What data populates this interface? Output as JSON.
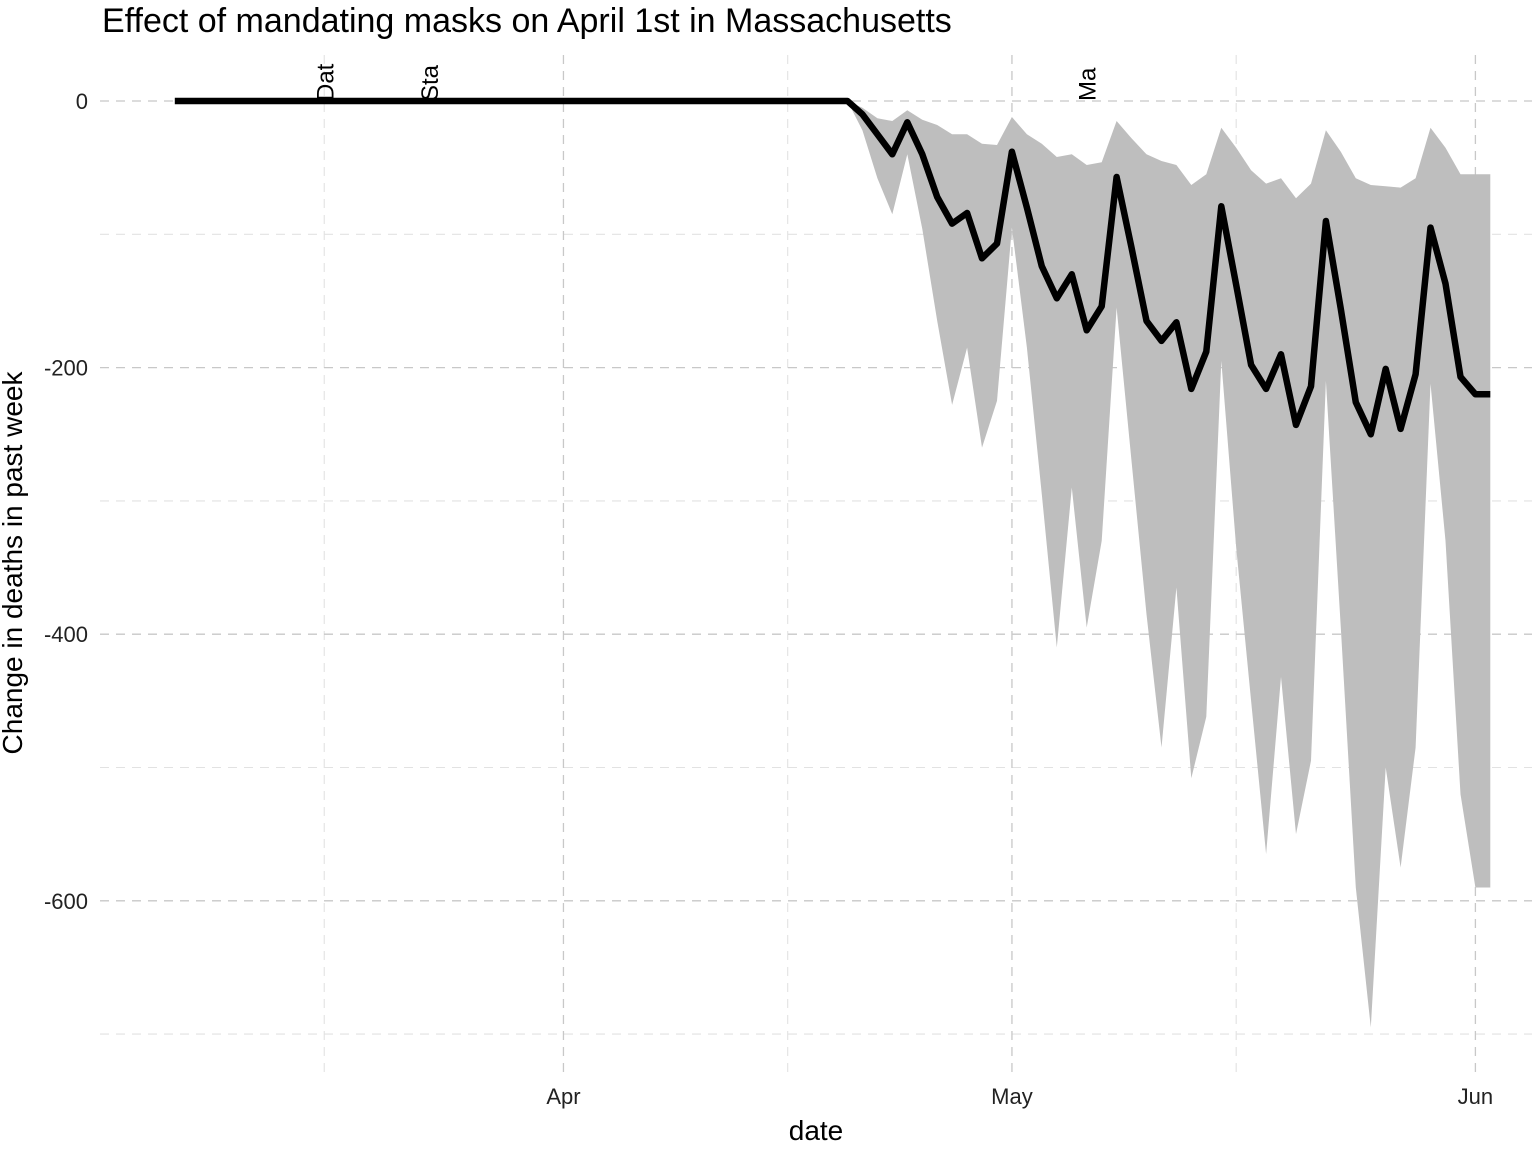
{
  "chart_data": {
    "type": "line",
    "title": "Effect of mandating masks on April 1st in Massachusetts",
    "xlabel": "date",
    "ylabel": "Change in deaths in past week",
    "x_ticks": [
      {
        "date": "2020-04-01",
        "label": "Apr"
      },
      {
        "date": "2020-05-01",
        "label": "May"
      },
      {
        "date": "2020-06-01",
        "label": "Jun"
      }
    ],
    "x_minor_ticks": [
      "2020-03-16",
      "2020-04-16",
      "2020-05-16"
    ],
    "y_ticks": [
      0,
      -200,
      -400,
      -600
    ],
    "y_minor_ticks": [
      -100,
      -300,
      -500,
      -700
    ],
    "xlim": [
      "2020-03-01",
      "2020-06-03"
    ],
    "ylim": [
      -730,
      35
    ],
    "grid": true,
    "legend": "none",
    "colors": {
      "line": "#000000",
      "ribbon": "#bebebe",
      "grid": "#c8c8c8"
    },
    "annotations": [
      {
        "date": "2020-03-16",
        "text": "Dat"
      },
      {
        "date": "2020-03-23",
        "text": "Sta"
      },
      {
        "date": "2020-05-06",
        "text": "Ma"
      }
    ],
    "series": [
      {
        "type": "line",
        "x": [
          "2020-03-06",
          "2020-04-20",
          "2020-04-21",
          "2020-04-22",
          "2020-04-23",
          "2020-04-24",
          "2020-04-25",
          "2020-04-26",
          "2020-04-27",
          "2020-04-28",
          "2020-04-29",
          "2020-04-30",
          "2020-05-01",
          "2020-05-02",
          "2020-05-03",
          "2020-05-04",
          "2020-05-05",
          "2020-05-06",
          "2020-05-07",
          "2020-05-08",
          "2020-05-09",
          "2020-05-10",
          "2020-05-11",
          "2020-05-12",
          "2020-05-13",
          "2020-05-14",
          "2020-05-15",
          "2020-05-16",
          "2020-05-17",
          "2020-05-18",
          "2020-05-19",
          "2020-05-20",
          "2020-05-21",
          "2020-05-22",
          "2020-05-23",
          "2020-05-24",
          "2020-05-25",
          "2020-05-26",
          "2020-05-27",
          "2020-05-28",
          "2020-05-29",
          "2020-05-30",
          "2020-05-31",
          "2020-06-01",
          "2020-06-02"
        ],
        "y": [
          0,
          0,
          -10,
          -25,
          -40,
          -16,
          -40,
          -72,
          -92,
          -84,
          -118,
          -107,
          -38,
          -80,
          -124,
          -148,
          -130,
          -172,
          -154,
          -57,
          -110,
          -165,
          -180,
          -166,
          -216,
          -188,
          -79,
          -138,
          -198,
          -216,
          -190,
          -243,
          -214,
          -90,
          -156,
          -226,
          -250,
          -201,
          -246,
          -205,
          -95,
          -137,
          -207,
          -220,
          -220
        ]
      },
      {
        "type": "ribbon",
        "x": [
          "2020-03-06",
          "2020-04-20",
          "2020-04-21",
          "2020-04-22",
          "2020-04-23",
          "2020-04-24",
          "2020-04-25",
          "2020-04-26",
          "2020-04-27",
          "2020-04-28",
          "2020-04-29",
          "2020-04-30",
          "2020-05-01",
          "2020-05-02",
          "2020-05-03",
          "2020-05-04",
          "2020-05-05",
          "2020-05-06",
          "2020-05-07",
          "2020-05-08",
          "2020-05-09",
          "2020-05-10",
          "2020-05-11",
          "2020-05-12",
          "2020-05-13",
          "2020-05-14",
          "2020-05-15",
          "2020-05-16",
          "2020-05-17",
          "2020-05-18",
          "2020-05-19",
          "2020-05-20",
          "2020-05-21",
          "2020-05-22",
          "2020-05-23",
          "2020-05-24",
          "2020-05-25",
          "2020-05-26",
          "2020-05-27",
          "2020-05-28",
          "2020-05-29",
          "2020-05-30",
          "2020-05-31",
          "2020-06-01",
          "2020-06-02"
        ],
        "upper": [
          0,
          0,
          -5,
          -13,
          -15,
          -7,
          -14,
          -18,
          -25,
          -25,
          -32,
          -33,
          -12,
          -25,
          -32,
          -42,
          -40,
          -48,
          -46,
          -15,
          -28,
          -40,
          -45,
          -48,
          -63,
          -55,
          -20,
          -35,
          -52,
          -62,
          -58,
          -73,
          -62,
          -22,
          -38,
          -58,
          -63,
          -64,
          -65,
          -58,
          -20,
          -35,
          -55,
          -55,
          -55
        ],
        "lower": [
          0,
          0,
          -22,
          -58,
          -85,
          -40,
          -96,
          -165,
          -228,
          -185,
          -260,
          -225,
          -95,
          -185,
          -295,
          -410,
          -290,
          -395,
          -330,
          -155,
          -270,
          -385,
          -485,
          -365,
          -508,
          -462,
          -195,
          -335,
          -450,
          -565,
          -432,
          -550,
          -495,
          -210,
          -395,
          -590,
          -695,
          -500,
          -575,
          -485,
          -212,
          -330,
          -520,
          -590,
          -590
        ]
      }
    ]
  }
}
